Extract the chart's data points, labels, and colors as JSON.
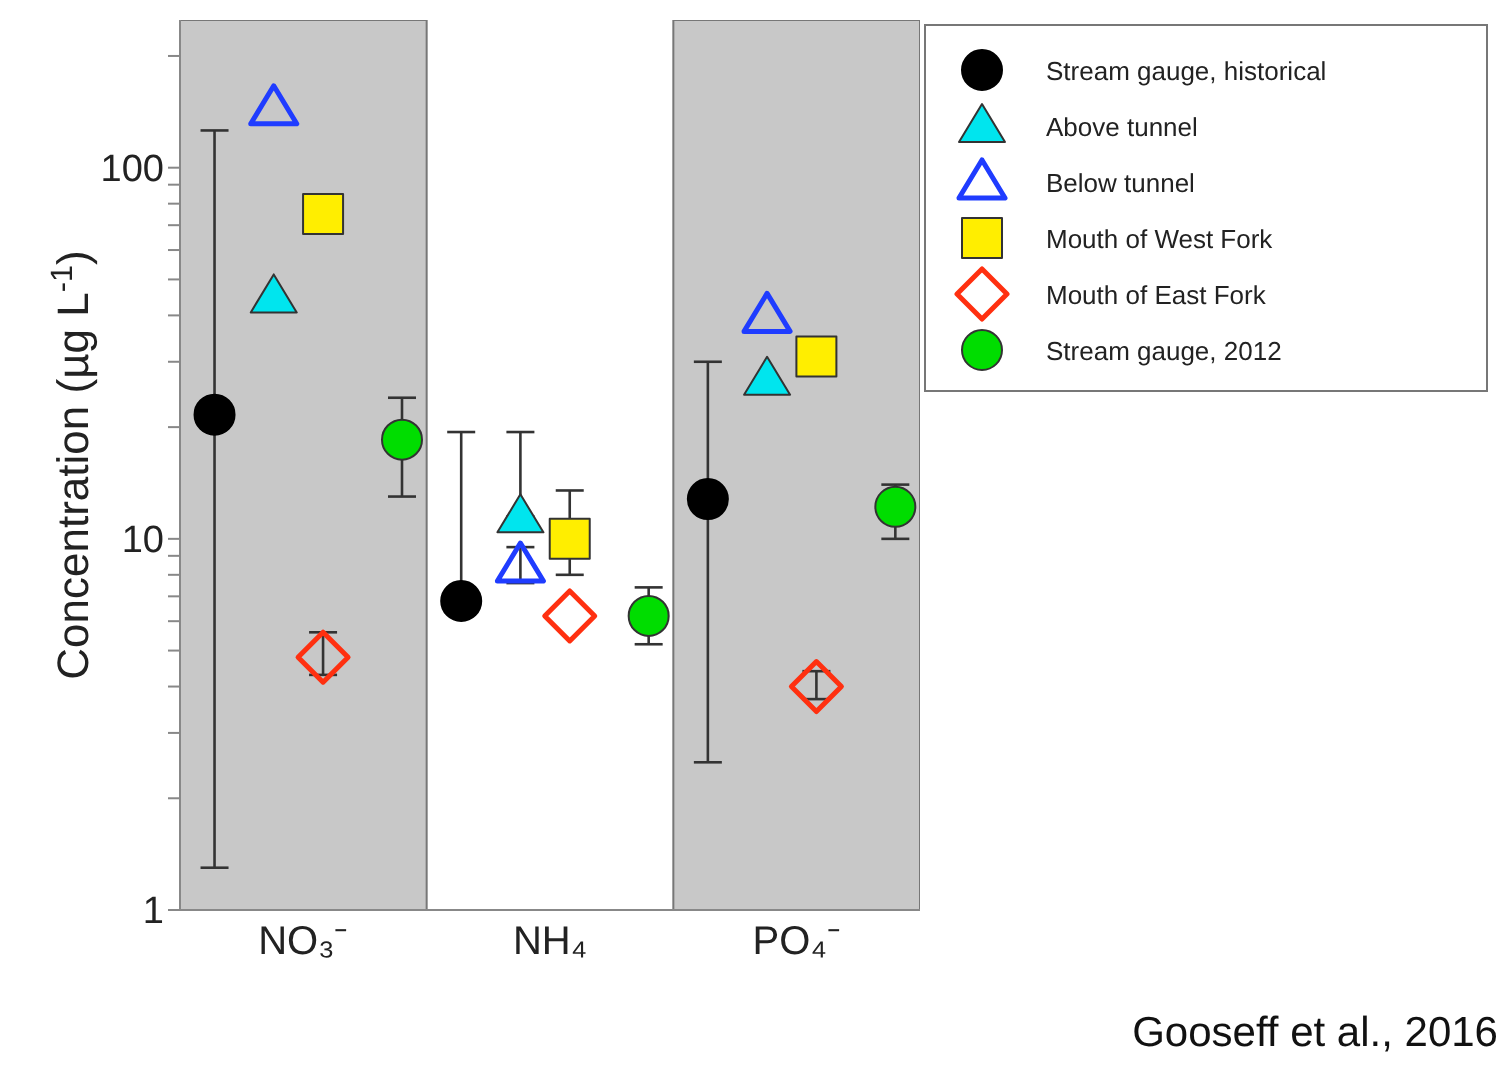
{
  "chart_data": {
    "type": "scatter",
    "ylabel": "Concentration (µg L$^{-1}$)",
    "categories": [
      "NO₃⁻",
      "NH₄",
      "PO₄⁻"
    ],
    "log": "y",
    "ylim": [
      1,
      250
    ],
    "yticks": [
      1,
      {
        "value": 2,
        "label": null
      },
      {
        "value": 3,
        "label": null
      },
      {
        "value": 4,
        "label": null
      },
      {
        "value": 5,
        "label": null
      },
      {
        "value": 6,
        "label": null
      },
      {
        "value": 7,
        "label": null
      },
      {
        "value": 8,
        "label": null
      },
      {
        "value": 9,
        "label": null
      },
      10,
      {
        "value": 20,
        "label": null
      },
      {
        "value": 30,
        "label": null
      },
      {
        "value": 40,
        "label": null
      },
      {
        "value": 50,
        "label": null
      },
      {
        "value": 60,
        "label": null
      },
      {
        "value": 70,
        "label": null
      },
      {
        "value": 80,
        "label": null
      },
      {
        "value": 90,
        "label": null
      },
      100,
      {
        "value": 200,
        "label": null
      }
    ],
    "grid": false,
    "legend": "top right",
    "bands": [
      {
        "axis": "x",
        "from": "NO₃⁻",
        "to": "NO₃⁻",
        "color": "#c8c8c8"
      },
      {
        "axis": "x",
        "from": "PO₄⁻",
        "to": "PO₄⁻",
        "color": "#c8c8c8"
      }
    ],
    "series": [
      {
        "name": "Stream gauge, historical",
        "color": "#000000",
        "marker": "circle",
        "values": [
          21.6,
          6.8,
          12.8
        ],
        "errors": [
          [
            1.3,
            126
          ],
          [
            6.8,
            19.4
          ],
          [
            2.5,
            30
          ]
        ]
      },
      {
        "name": "Above tunnel",
        "color": "#00e5ee",
        "marker": "triangle",
        "values": [
          45,
          11.5,
          27
        ],
        "errors": [
          null,
          [
            11.5,
            19.4
          ],
          null
        ]
      },
      {
        "name": "Below tunnel",
        "color": "#1f3cff",
        "marker": "triangle-open",
        "values": [
          145,
          8.5,
          40
        ],
        "errors": [
          null,
          [
            7.6,
            9.5
          ],
          null
        ]
      },
      {
        "name": "Mouth of West Fork",
        "color": "#ffee00",
        "marker": "square",
        "values": [
          75,
          10,
          31
        ],
        "errors": [
          null,
          [
            8,
            13.5
          ],
          null
        ]
      },
      {
        "name": "Mouth of East Fork",
        "color": "#ff3010",
        "marker": "diamond-open",
        "values": [
          4.8,
          6.2,
          4.0
        ],
        "errors": [
          [
            4.3,
            5.6
          ],
          null,
          [
            3.7,
            4.4
          ]
        ]
      },
      {
        "name": "Stream gauge, 2012",
        "color": "#00dd00",
        "marker": "circle",
        "values": [
          18.5,
          6.2,
          12.2
        ],
        "errors": [
          [
            13,
            24
          ],
          [
            5.2,
            7.4
          ],
          [
            10,
            14
          ]
        ]
      }
    ],
    "annotations": [
      "Gooseff et al., 2016"
    ]
  }
}
